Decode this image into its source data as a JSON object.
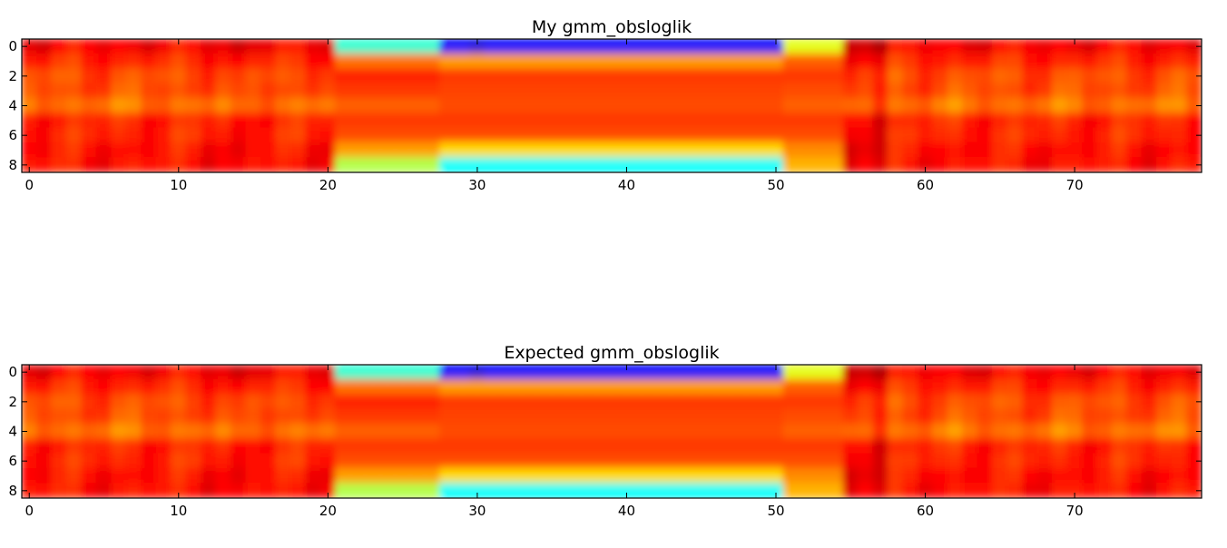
{
  "chart_data": [
    {
      "type": "heatmap",
      "title": "My gmm_obsloglik",
      "xlabel": "",
      "ylabel": "",
      "xlim": [
        -0.5,
        78.5
      ],
      "ylim": [
        8.5,
        -0.5
      ],
      "x_ticks": [
        0,
        10,
        20,
        30,
        40,
        50,
        60,
        70
      ],
      "y_ticks": [
        0,
        2,
        4,
        6,
        8
      ],
      "colormap": "jet",
      "grid": false,
      "n_rows": 9,
      "n_cols": 79,
      "row_profiles": {
        "background": [
          0.88,
          0.84,
          0.8,
          0.8,
          0.76,
          0.84,
          0.84,
          0.86,
          0.86
        ],
        "segment_21_27": [
          0.42,
          0.76,
          0.84,
          0.82,
          0.78,
          0.82,
          0.8,
          0.72,
          0.55
        ],
        "segment_28_50": [
          0.12,
          0.72,
          0.82,
          0.81,
          0.8,
          0.82,
          0.8,
          0.66,
          0.38
        ],
        "segment_51_54": [
          0.6,
          0.78,
          0.82,
          0.8,
          0.78,
          0.82,
          0.8,
          0.74,
          0.7
        ]
      }
    },
    {
      "type": "heatmap",
      "title": "Expected gmm_obsloglik",
      "xlabel": "",
      "ylabel": "",
      "xlim": [
        -0.5,
        78.5
      ],
      "ylim": [
        8.5,
        -0.5
      ],
      "x_ticks": [
        0,
        10,
        20,
        30,
        40,
        50,
        60,
        70
      ],
      "y_ticks": [
        0,
        2,
        4,
        6,
        8
      ],
      "colormap": "jet",
      "grid": false,
      "n_rows": 9,
      "n_cols": 79,
      "row_profiles": {
        "background": [
          0.88,
          0.84,
          0.8,
          0.8,
          0.76,
          0.84,
          0.84,
          0.86,
          0.86
        ],
        "segment_21_27": [
          0.42,
          0.76,
          0.84,
          0.82,
          0.78,
          0.82,
          0.8,
          0.72,
          0.55
        ],
        "segment_28_50": [
          0.12,
          0.72,
          0.82,
          0.81,
          0.8,
          0.82,
          0.8,
          0.66,
          0.38
        ],
        "segment_51_54": [
          0.6,
          0.78,
          0.82,
          0.8,
          0.78,
          0.82,
          0.8,
          0.74,
          0.7
        ]
      }
    }
  ]
}
